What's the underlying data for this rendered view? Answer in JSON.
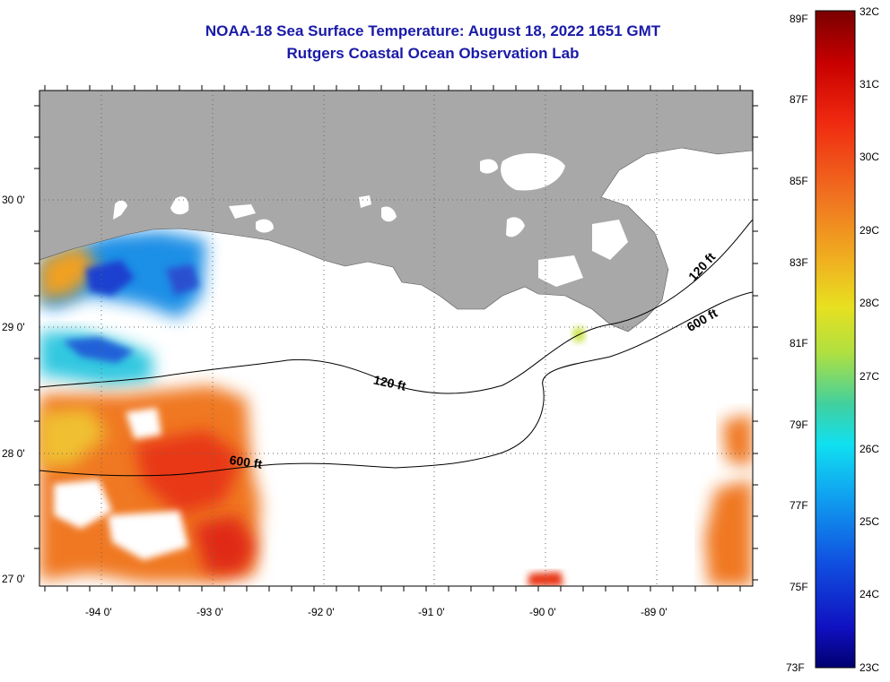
{
  "title": {
    "line1": "NOAA-18 Sea Surface Temperature:  August 18, 2022 1651 GMT",
    "line2": "Rutgers Coastal Ocean Observation Lab"
  },
  "axes": {
    "lat_labels": [
      "30 0'",
      "29 0'",
      "28 0'",
      "27 0'"
    ],
    "lon_labels": [
      "-94 0'",
      "-93 0'",
      "-92 0'",
      "-91 0'",
      "-90 0'",
      "-89 0'"
    ]
  },
  "contours": {
    "shallow": "120 ft",
    "deep": "600 ft"
  },
  "colorbar": {
    "fahrenheit": [
      "89F",
      "87F",
      "85F",
      "83F",
      "81F",
      "79F",
      "77F",
      "75F",
      "73F"
    ],
    "celsius": [
      "32C",
      "31C",
      "30C",
      "29C",
      "28C",
      "27C",
      "26C",
      "25C",
      "24C",
      "23C"
    ],
    "range_c": [
      23,
      32
    ]
  },
  "colors": {
    "title": "#1a1aa8",
    "land": "#a8a8a8",
    "cloud_mask": "#ffffff"
  }
}
